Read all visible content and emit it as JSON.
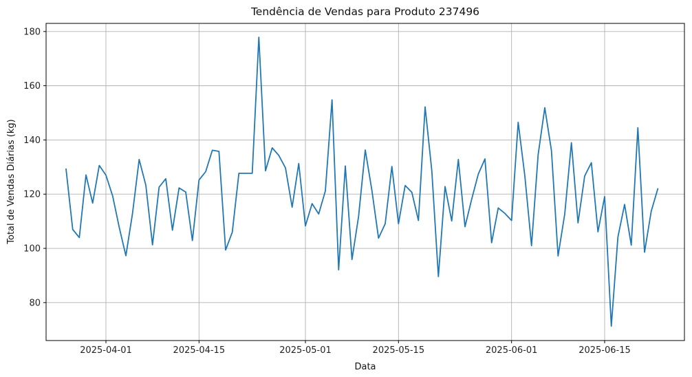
{
  "chart_data": {
    "type": "line",
    "title": "Tendência de Vendas para Produto 237496",
    "xlabel": "Data",
    "ylabel": "Total de Vendas Diárias (kg)",
    "x_ticks": [
      "2025-04-01",
      "2025-04-15",
      "2025-05-01",
      "2025-05-15",
      "2025-06-01",
      "2025-06-15"
    ],
    "y_ticks": [
      "80",
      "100",
      "120",
      "140",
      "160",
      "180"
    ],
    "xlim": [
      "2025-03-23",
      "2025-06-27"
    ],
    "ylim": [
      66,
      183
    ],
    "grid": true,
    "line_color": "#1f77b4",
    "series": [
      {
        "x": [
          "2025-03-26",
          "2025-03-27",
          "2025-03-28",
          "2025-03-29",
          "2025-03-30",
          "2025-03-31",
          "2025-04-01",
          "2025-04-02",
          "2025-04-03",
          "2025-04-04",
          "2025-04-05",
          "2025-04-06",
          "2025-04-07",
          "2025-04-08",
          "2025-04-09",
          "2025-04-10",
          "2025-04-11",
          "2025-04-12",
          "2025-04-13",
          "2025-04-14",
          "2025-04-15",
          "2025-04-16",
          "2025-04-17",
          "2025-04-18",
          "2025-04-19",
          "2025-04-20",
          "2025-04-21",
          "2025-04-22",
          "2025-04-23",
          "2025-04-24",
          "2025-04-25",
          "2025-04-26",
          "2025-04-27",
          "2025-04-28",
          "2025-04-29",
          "2025-04-30",
          "2025-05-01",
          "2025-05-02",
          "2025-05-03",
          "2025-05-04",
          "2025-05-05",
          "2025-05-06",
          "2025-05-07",
          "2025-05-08",
          "2025-05-09",
          "2025-05-10",
          "2025-05-11",
          "2025-05-12",
          "2025-05-13",
          "2025-05-14",
          "2025-05-15",
          "2025-05-16",
          "2025-05-17",
          "2025-05-18",
          "2025-05-19",
          "2025-05-20",
          "2025-05-21",
          "2025-05-22",
          "2025-05-23",
          "2025-05-24",
          "2025-05-25",
          "2025-05-26",
          "2025-05-27",
          "2025-05-28",
          "2025-05-29",
          "2025-05-30",
          "2025-05-31",
          "2025-06-01",
          "2025-06-02",
          "2025-06-03",
          "2025-06-04",
          "2025-06-05",
          "2025-06-06",
          "2025-06-07",
          "2025-06-08",
          "2025-06-09",
          "2025-06-10",
          "2025-06-11",
          "2025-06-12",
          "2025-06-13",
          "2025-06-14",
          "2025-06-15",
          "2025-06-16",
          "2025-06-17",
          "2025-06-18",
          "2025-06-19",
          "2025-06-20",
          "2025-06-21",
          "2025-06-22",
          "2025-06-23"
        ],
        "values": [
          129.3,
          107.0,
          104.0,
          127.1,
          116.7,
          130.6,
          127.0,
          119.4,
          107.8,
          97.3,
          113.0,
          132.8,
          123.3,
          101.3,
          122.6,
          125.7,
          106.7,
          122.3,
          120.8,
          102.9,
          125.2,
          128.3,
          136.2,
          135.8,
          99.4,
          106.0,
          127.7,
          127.7,
          127.7,
          177.9,
          128.6,
          137.1,
          134.3,
          129.7,
          115.2,
          131.3,
          108.3,
          116.5,
          112.7,
          121.2,
          154.8,
          92.1,
          130.4,
          95.9,
          111.8,
          136.3,
          121.3,
          103.8,
          109.1,
          130.2,
          109.1,
          123.2,
          120.7,
          110.3,
          152.2,
          128.8,
          89.6,
          122.8,
          110.1,
          132.8,
          108.0,
          118.1,
          127.4,
          133.0,
          102.1,
          114.9,
          112.9,
          110.3,
          146.5,
          126.7,
          101.0,
          134.5,
          151.9,
          136.0,
          97.2,
          112.7,
          139.0,
          109.4,
          126.7,
          131.6,
          106.1,
          119.1,
          71.3,
          104.2,
          116.2,
          101.2,
          144.5,
          98.6,
          113.7,
          122.0
        ]
      }
    ]
  }
}
